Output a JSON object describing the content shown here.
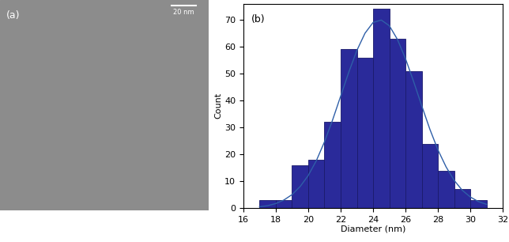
{
  "chart_data": [
    {
      "type": "image",
      "label": "(a)",
      "scale_bar": "20 nm",
      "color": "#8c8c8c"
    },
    {
      "type": "histogram",
      "label": "(b)",
      "x_label": "Diameter (nm)",
      "y_label": "Count",
      "bins": [
        17,
        18,
        19,
        20,
        21,
        22,
        23,
        24,
        25,
        26,
        27,
        28,
        29,
        30,
        31
      ],
      "values": [
        3,
        3,
        16,
        18,
        32,
        59,
        56,
        74,
        63,
        51,
        24,
        14,
        7,
        3
      ],
      "color": "#2a2a9a",
      "series": [
        {
          "type": "line",
          "color": "#2f5fa8",
          "x": [
            17,
            17.5,
            18,
            18.5,
            19,
            19.5,
            20,
            20.5,
            21,
            21.5,
            22,
            22.5,
            23,
            23.5,
            24,
            24.5,
            25,
            25.5,
            26,
            26.5,
            27,
            27.5,
            28,
            28.5,
            29,
            29.5,
            30,
            30.5,
            31
          ],
          "values": [
            0.5,
            0.9,
            1.7,
            3.0,
            5.0,
            8.0,
            12.1,
            17.6,
            24.6,
            32.7,
            41.6,
            50.5,
            58.6,
            65.0,
            69.0,
            69.9,
            67.8,
            62.7,
            55.5,
            47.0,
            38.0,
            29.3,
            21.6,
            15.3,
            10.3,
            6.6,
            4.1,
            2.4,
            1.4
          ]
        }
      ],
      "xlim": [
        16,
        32
      ],
      "xticks": [
        16,
        18,
        20,
        22,
        24,
        26,
        28,
        30,
        32
      ],
      "ylim": [
        0,
        76
      ],
      "yticks": [
        0,
        10,
        20,
        30,
        40,
        50,
        60,
        70
      ]
    }
  ]
}
